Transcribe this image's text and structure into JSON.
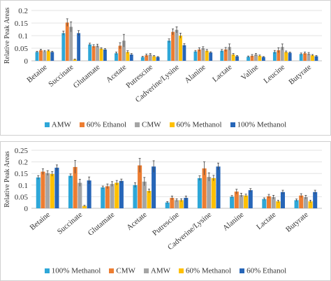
{
  "chart_data": [
    {
      "type": "bar",
      "ylabel": "Relative Peak Areas",
      "ylim": [
        0,
        0.2
      ],
      "yticks": [
        "0",
        "0.05",
        "0.1",
        "0.15",
        "0.2"
      ],
      "grid": true,
      "legend_position": "bottom",
      "categories": [
        "Betaine",
        "Succinate",
        "Glutamate",
        "Acetate",
        "Putrescine",
        "Cadverine/Lysine",
        "Alanine",
        "Lactate",
        "Valine",
        "Leucine",
        "Butyrate"
      ],
      "series": [
        {
          "name": "AMW",
          "color": "#2ea7d8",
          "values": [
            0.035,
            0.11,
            0.065,
            0.03,
            0.015,
            0.08,
            0.037,
            0.04,
            0.016,
            0.035,
            0.027
          ]
        },
        {
          "name": "60% Ethanol",
          "color": "#ed7d31",
          "values": [
            0.042,
            0.152,
            0.058,
            0.06,
            0.022,
            0.115,
            0.045,
            0.045,
            0.02,
            0.042,
            0.03
          ]
        },
        {
          "name": "CMW",
          "color": "#a5a5a5",
          "values": [
            0.038,
            0.135,
            0.06,
            0.08,
            0.025,
            0.123,
            0.05,
            0.055,
            0.025,
            0.055,
            0.028
          ]
        },
        {
          "name": "60% Methanol",
          "color": "#ffc000",
          "values": [
            0.04,
            0.005,
            0.048,
            0.035,
            0.018,
            0.1,
            0.04,
            0.025,
            0.02,
            0.035,
            0.022
          ]
        },
        {
          "name": "100% Methanol",
          "color": "#2766b8",
          "values": [
            0.035,
            0.11,
            0.045,
            0.025,
            0.015,
            0.062,
            0.033,
            0.018,
            0.015,
            0.032,
            0.018
          ]
        }
      ],
      "errors": [
        [
          0.003,
          0.008,
          0.005,
          0.005,
          0.003,
          0.007,
          0.004,
          0.005,
          0.003,
          0.006,
          0.004
        ],
        [
          0.004,
          0.015,
          0.006,
          0.012,
          0.005,
          0.012,
          0.007,
          0.008,
          0.005,
          0.01,
          0.005
        ],
        [
          0.003,
          0.02,
          0.006,
          0.025,
          0.004,
          0.012,
          0.006,
          0.012,
          0.004,
          0.012,
          0.005
        ],
        [
          0.003,
          0.002,
          0.004,
          0.005,
          0.003,
          0.01,
          0.005,
          0.004,
          0.003,
          0.004,
          0.003
        ],
        [
          0.003,
          0.01,
          0.004,
          0.004,
          0.002,
          0.006,
          0.003,
          0.003,
          0.002,
          0.003,
          0.003
        ]
      ]
    },
    {
      "type": "bar",
      "ylabel": "Relative Peak Areas",
      "ylim": [
        0,
        0.25
      ],
      "yticks": [
        "0",
        "0.05",
        "0.1",
        "0.15",
        "0.2",
        "0.25"
      ],
      "grid": true,
      "legend_position": "bottom",
      "categories": [
        "Betaine",
        "Succinate",
        "Glutamate",
        "Acetate",
        "Putrescine",
        "Cadverine/Lysine",
        "Alanine",
        "Lactate",
        "Butyrate"
      ],
      "series": [
        {
          "name": "100% Methanol",
          "color": "#2ea7d8",
          "values": [
            0.133,
            0.14,
            0.09,
            0.1,
            0.025,
            0.13,
            0.05,
            0.04,
            0.035
          ]
        },
        {
          "name": "CMW",
          "color": "#ed7d31",
          "values": [
            0.158,
            0.178,
            0.095,
            0.185,
            0.045,
            0.172,
            0.072,
            0.052,
            0.055
          ]
        },
        {
          "name": "AMW",
          "color": "#a5a5a5",
          "values": [
            0.152,
            0.11,
            0.105,
            0.115,
            0.035,
            0.135,
            0.057,
            0.048,
            0.048
          ]
        },
        {
          "name": "60% Methanol",
          "color": "#ffc000",
          "values": [
            0.148,
            0.01,
            0.11,
            0.075,
            0.035,
            0.13,
            0.055,
            0.03,
            0.03
          ]
        },
        {
          "name": "60% Ethanol",
          "color": "#2766b8",
          "values": [
            0.175,
            0.12,
            0.118,
            0.18,
            0.045,
            0.18,
            0.078,
            0.07,
            0.07
          ]
        }
      ],
      "errors": [
        [
          0.008,
          0.008,
          0.006,
          0.01,
          0.004,
          0.01,
          0.005,
          0.005,
          0.005
        ],
        [
          0.012,
          0.028,
          0.01,
          0.03,
          0.008,
          0.028,
          0.01,
          0.008,
          0.008
        ],
        [
          0.01,
          0.015,
          0.01,
          0.018,
          0.006,
          0.018,
          0.008,
          0.008,
          0.008
        ],
        [
          0.01,
          0.003,
          0.01,
          0.008,
          0.006,
          0.012,
          0.006,
          0.005,
          0.005
        ],
        [
          0.012,
          0.015,
          0.008,
          0.025,
          0.008,
          0.015,
          0.007,
          0.008,
          0.008
        ]
      ]
    }
  ]
}
